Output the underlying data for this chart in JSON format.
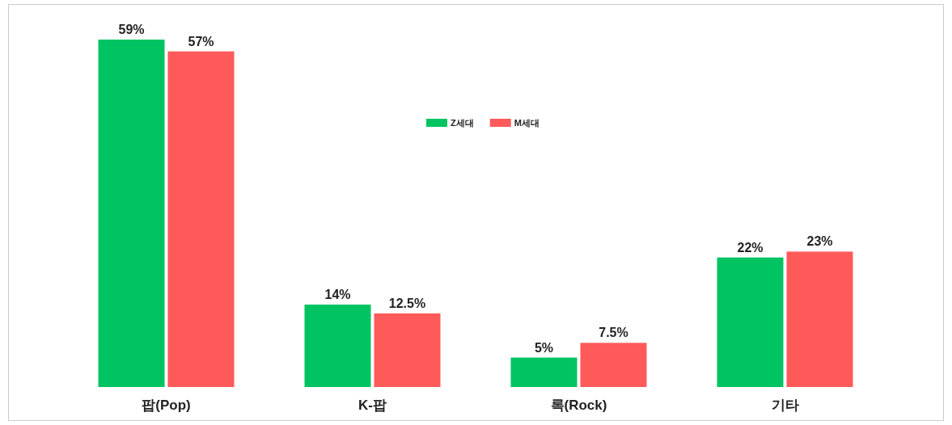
{
  "chart_data": {
    "type": "bar",
    "categories": [
      "팝(Pop)",
      "K-팝",
      "록(Rock)",
      "기타"
    ],
    "series": [
      {
        "name": "Z세대",
        "color": "#00c462",
        "values": [
          59,
          14,
          5,
          22
        ],
        "value_labels": [
          "59%",
          "14%",
          "5%",
          "22%"
        ]
      },
      {
        "name": "M세대",
        "color": "#ff5a5a",
        "values": [
          57,
          12.5,
          7.5,
          23
        ],
        "value_labels": [
          "57%",
          "12.5%",
          "7.5%",
          "23%"
        ]
      }
    ],
    "legend": "top"
  }
}
